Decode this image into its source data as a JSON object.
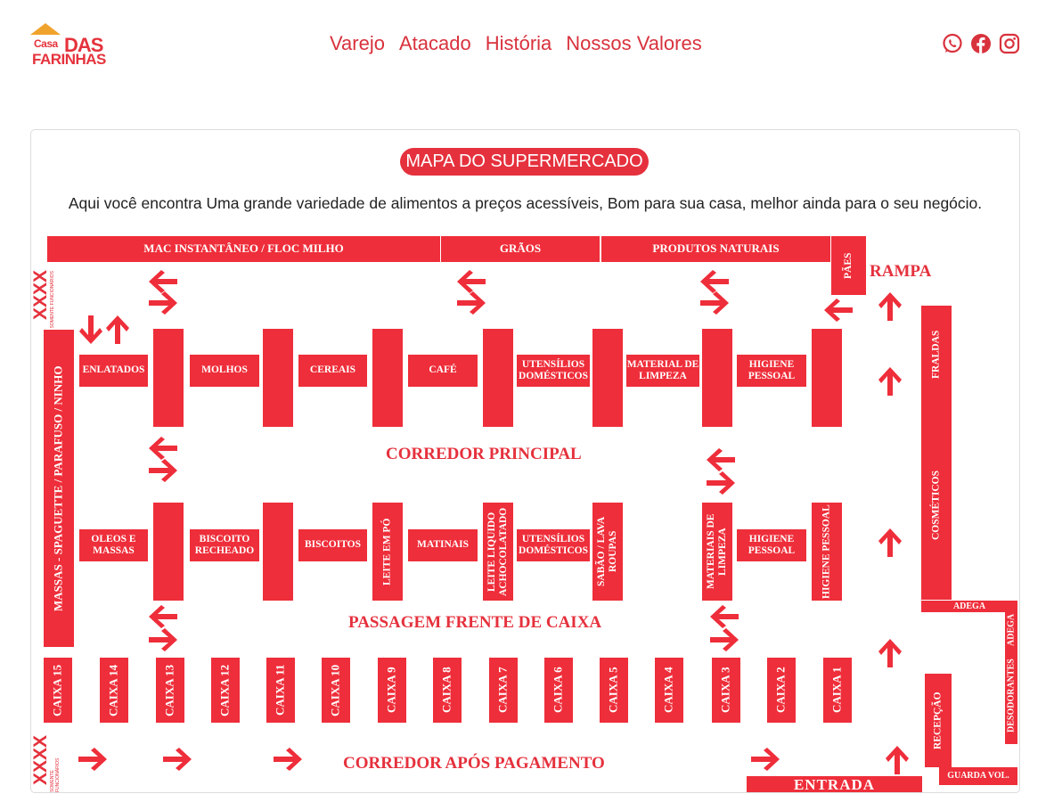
{
  "header": {
    "logo": {
      "line1": "Casa",
      "line2": "DAS",
      "line3": "FARINHAS"
    },
    "nav": [
      "Varejo",
      "Atacado",
      "História",
      "Nossos Valores"
    ],
    "social": [
      "whatsapp-icon",
      "facebook-icon",
      "instagram-icon"
    ]
  },
  "map": {
    "title": "MAPA DO SUPERMERCADO",
    "description": "Aqui você encontra Uma grande variedade de alimentos a preços acessíveis, Bom para sua casa, melhor ainda para o seu negócio.",
    "top": {
      "mac": "MAC INSTANTÂNEO / FLOC MILHO",
      "graos": "GRÃOS",
      "naturais": "PRODUTOS NATURAIS",
      "paes": "PÃES"
    },
    "rampa": "RAMPA",
    "massas": "MASSAS - SPAGUETTE / PARAFUSO / NINHO",
    "row1": [
      "ENLATADOS",
      "MOLHOS",
      "CEREAIS",
      "CAFÉ",
      "UTENSÍLIOS DOMÉSTICOS",
      "MATERIAL DE LIMPEZA",
      "HIGIENE PESSOAL"
    ],
    "corredor_principal": "CORREDOR PRINCIPAL",
    "row2": [
      "OLEOS E MASSAS",
      "BISCOITO RECHEADO",
      "BISCOITOS",
      "LEITE EM PÓ",
      "MATINAIS",
      "LEITE LIQUIDO ACHOCOLATADO",
      "UTENSÍLIOS DOMÉSTICOS",
      "SABÃO / LAVA ROUPAS",
      "MATERIAIS DE LIMPEZA",
      "HIGIENE PESSOAL",
      "HIGIENE PESSOAL"
    ],
    "passagem": "PASSAGEM FRENTE DE CAIXA",
    "caixas": [
      "CAIXA 15",
      "CAIXA 14",
      "CAIXA 13",
      "CAIXA 12",
      "CAIXA 11",
      "CAIXA 10",
      "CAIXA 9",
      "CAIXA 8",
      "CAIXA 7",
      "CAIXA 6",
      "CAIXA 5",
      "CAIXA 4",
      "CAIXA 3",
      "CAIXA 2",
      "CAIXA 1"
    ],
    "corredor_apos": "CORREDOR APÓS  PAGAMENTO",
    "entrada": "ENTRADA",
    "right": {
      "fraldas": "FRALDAS",
      "cosmeticos": "COSMÉTICOS",
      "adega_top": "ADEGA",
      "adega_side": "ADEGA",
      "desodorantes": "DESODORANTES",
      "recepcao": "RECEPÇÃO",
      "guarda": "GUARDA VOL."
    },
    "xxxx": "XXXX",
    "xxxx_note": "SOMENTE FUNCIONÁRIOS"
  },
  "colors": {
    "brand_red": "#ee2e3a",
    "nav_red": "#d8323d",
    "logo_orange": "#f0a32c"
  }
}
